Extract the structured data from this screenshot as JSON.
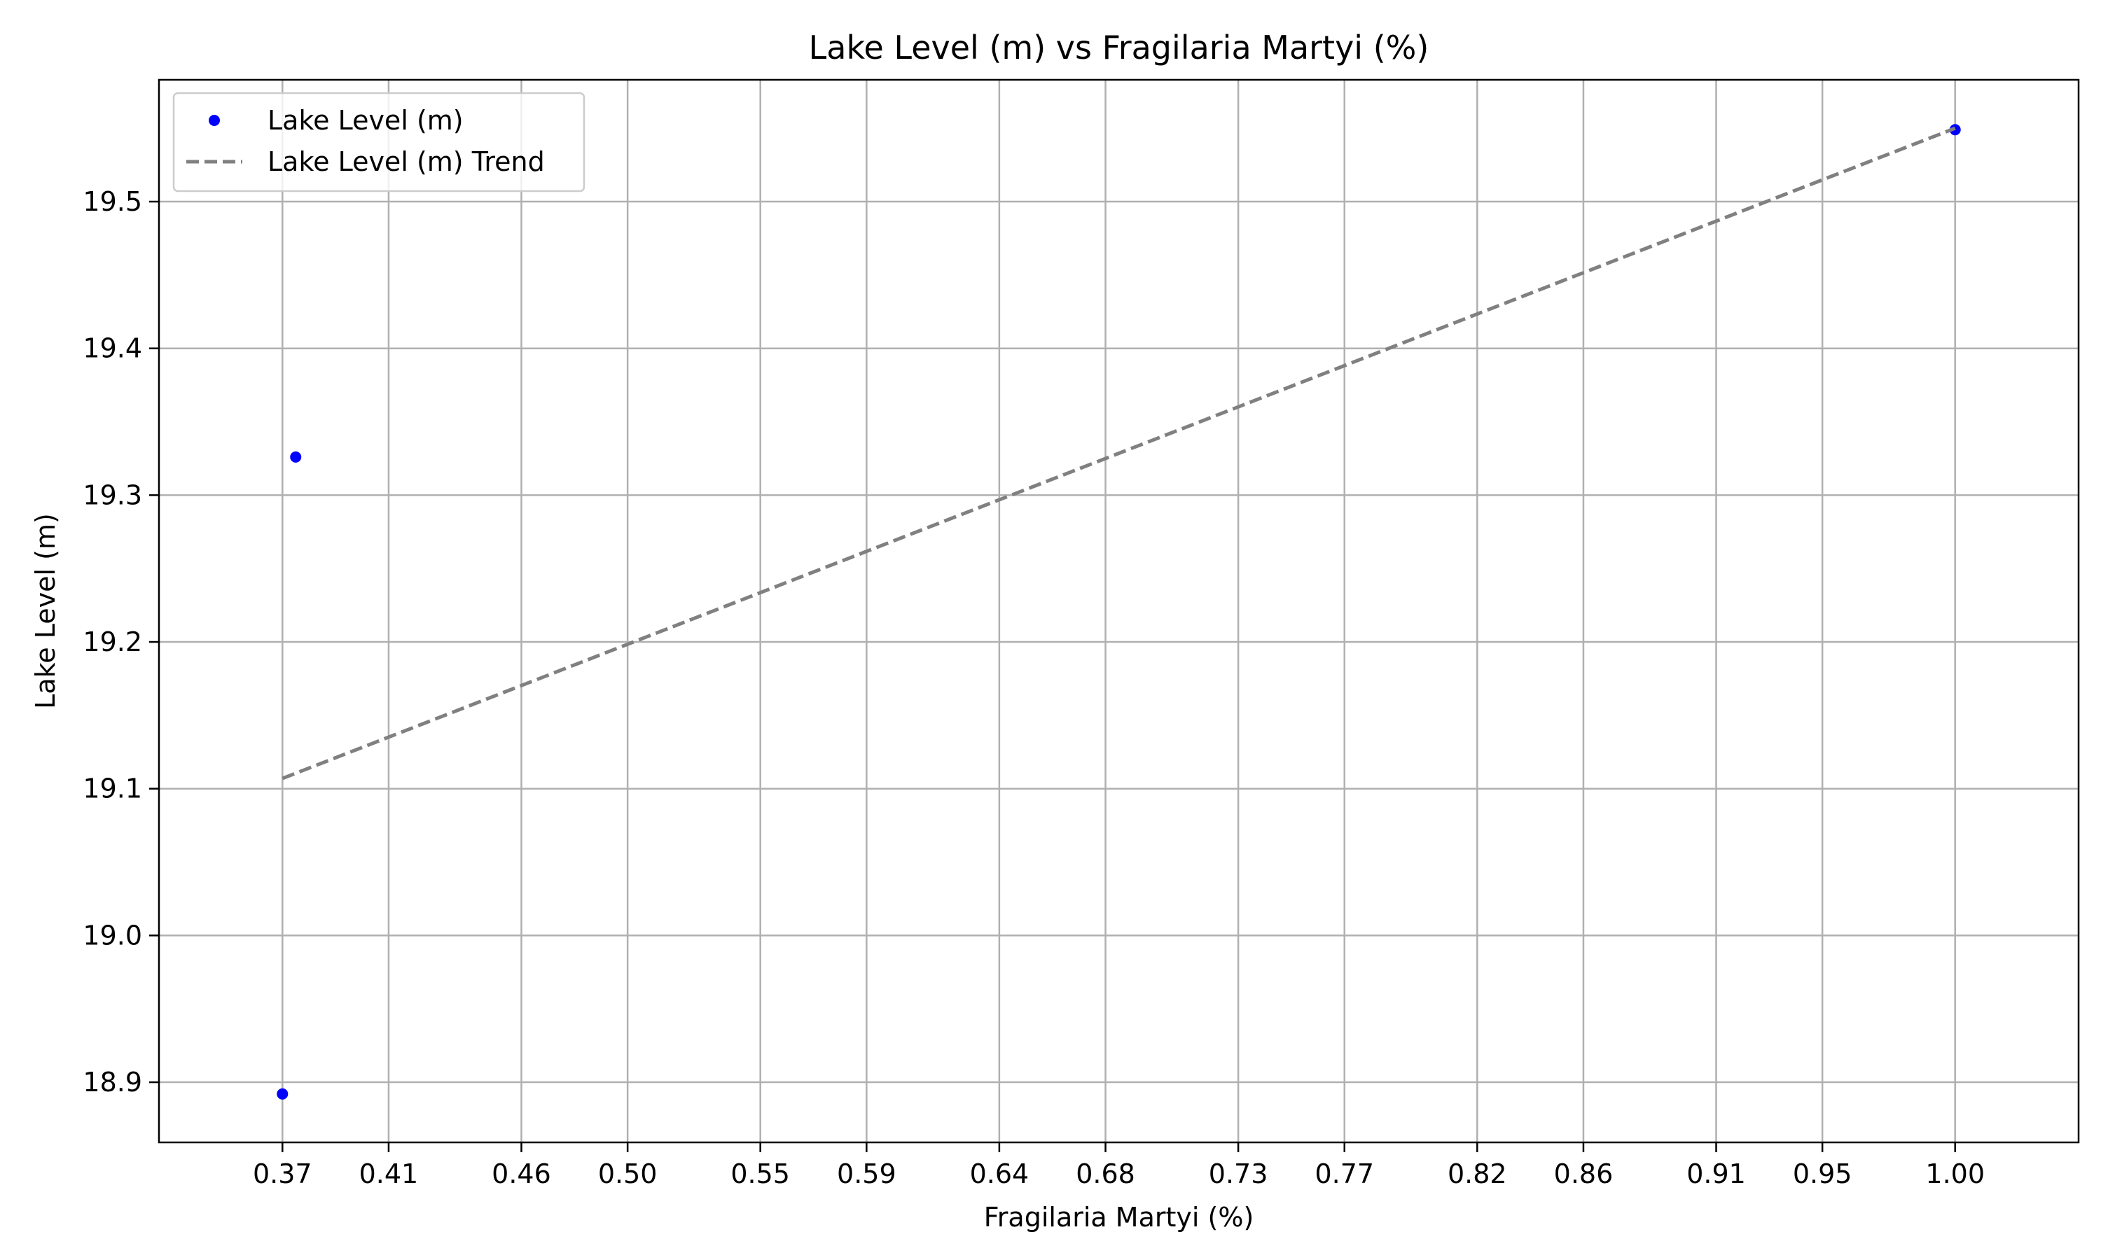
{
  "chart_data": {
    "type": "scatter",
    "title": "Lake Level (m) vs Fragilaria Martyi (%)",
    "xlabel": "Fragilaria Martyi (%)",
    "ylabel": "Lake Level (m)",
    "x_ticks": [
      "0.37",
      "0.41",
      "0.46",
      "0.50",
      "0.55",
      "0.59",
      "0.64",
      "0.68",
      "0.73",
      "0.77",
      "0.82",
      "0.86",
      "0.91",
      "0.95",
      "1.00"
    ],
    "y_ticks": [
      "18.9",
      "19.0",
      "19.1",
      "19.2",
      "19.3",
      "19.4",
      "19.5"
    ],
    "xlim": [
      0.3235,
      1.0465
    ],
    "ylim": [
      18.859,
      19.583
    ],
    "grid": true,
    "legend_position": "upper-left",
    "series": [
      {
        "name": "Lake Level (m)",
        "type": "scatter",
        "color": "#0000ff",
        "points": [
          {
            "x": 0.37,
            "y": 18.892
          },
          {
            "x": 0.375,
            "y": 19.326
          },
          {
            "x": 1.0,
            "y": 19.549
          }
        ]
      },
      {
        "name": "Lake Level (m) Trend",
        "type": "line",
        "style": "dashed",
        "color": "#808080",
        "points": [
          {
            "x": 0.37,
            "y": 19.107
          },
          {
            "x": 1.0,
            "y": 19.55
          }
        ]
      }
    ]
  }
}
